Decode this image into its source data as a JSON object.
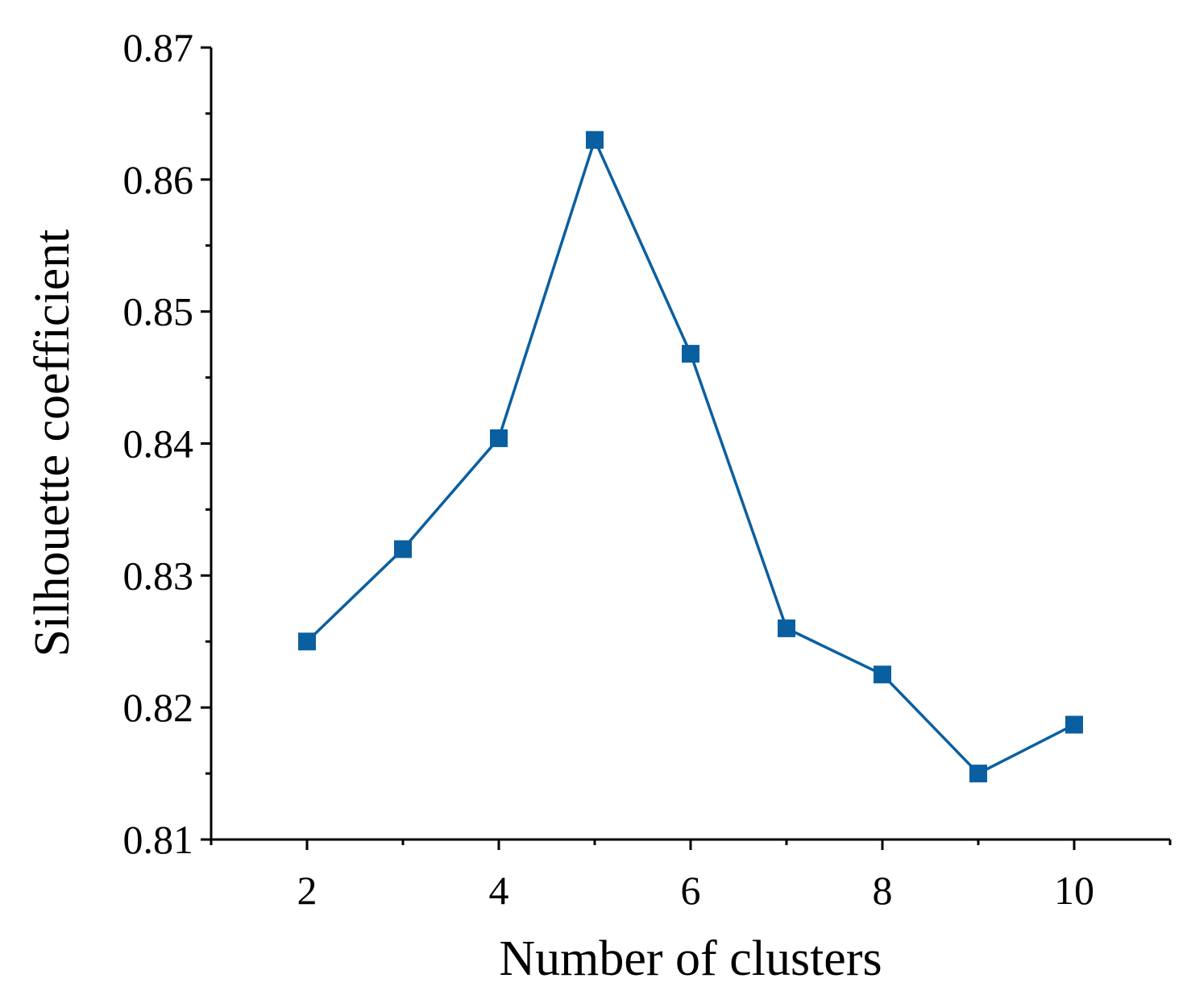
{
  "chart_data": {
    "type": "line",
    "xlabel": "Number of clusters",
    "ylabel": "Silhouette coefficient",
    "xlim": [
      1,
      11
    ],
    "ylim": [
      0.81,
      0.87
    ],
    "x_ticks": [
      2,
      4,
      6,
      8,
      10
    ],
    "x_minor_ticks": [
      1,
      3,
      5,
      7,
      9,
      11
    ],
    "y_ticks": [
      0.81,
      0.82,
      0.83,
      0.84,
      0.85,
      0.86,
      0.87
    ],
    "y_tick_labels": [
      "0.81",
      "0.82",
      "0.83",
      "0.84",
      "0.85",
      "0.86",
      "0.87"
    ],
    "y_minor_ticks": [
      0.815,
      0.825,
      0.835,
      0.845,
      0.855,
      0.865
    ],
    "grid": false,
    "marker": "square",
    "color": "#0a5fa0",
    "x": [
      2,
      3,
      4,
      5,
      6,
      7,
      8,
      9,
      10
    ],
    "values": [
      0.825,
      0.832,
      0.8404,
      0.863,
      0.8468,
      0.826,
      0.8225,
      0.815,
      0.8187
    ]
  }
}
